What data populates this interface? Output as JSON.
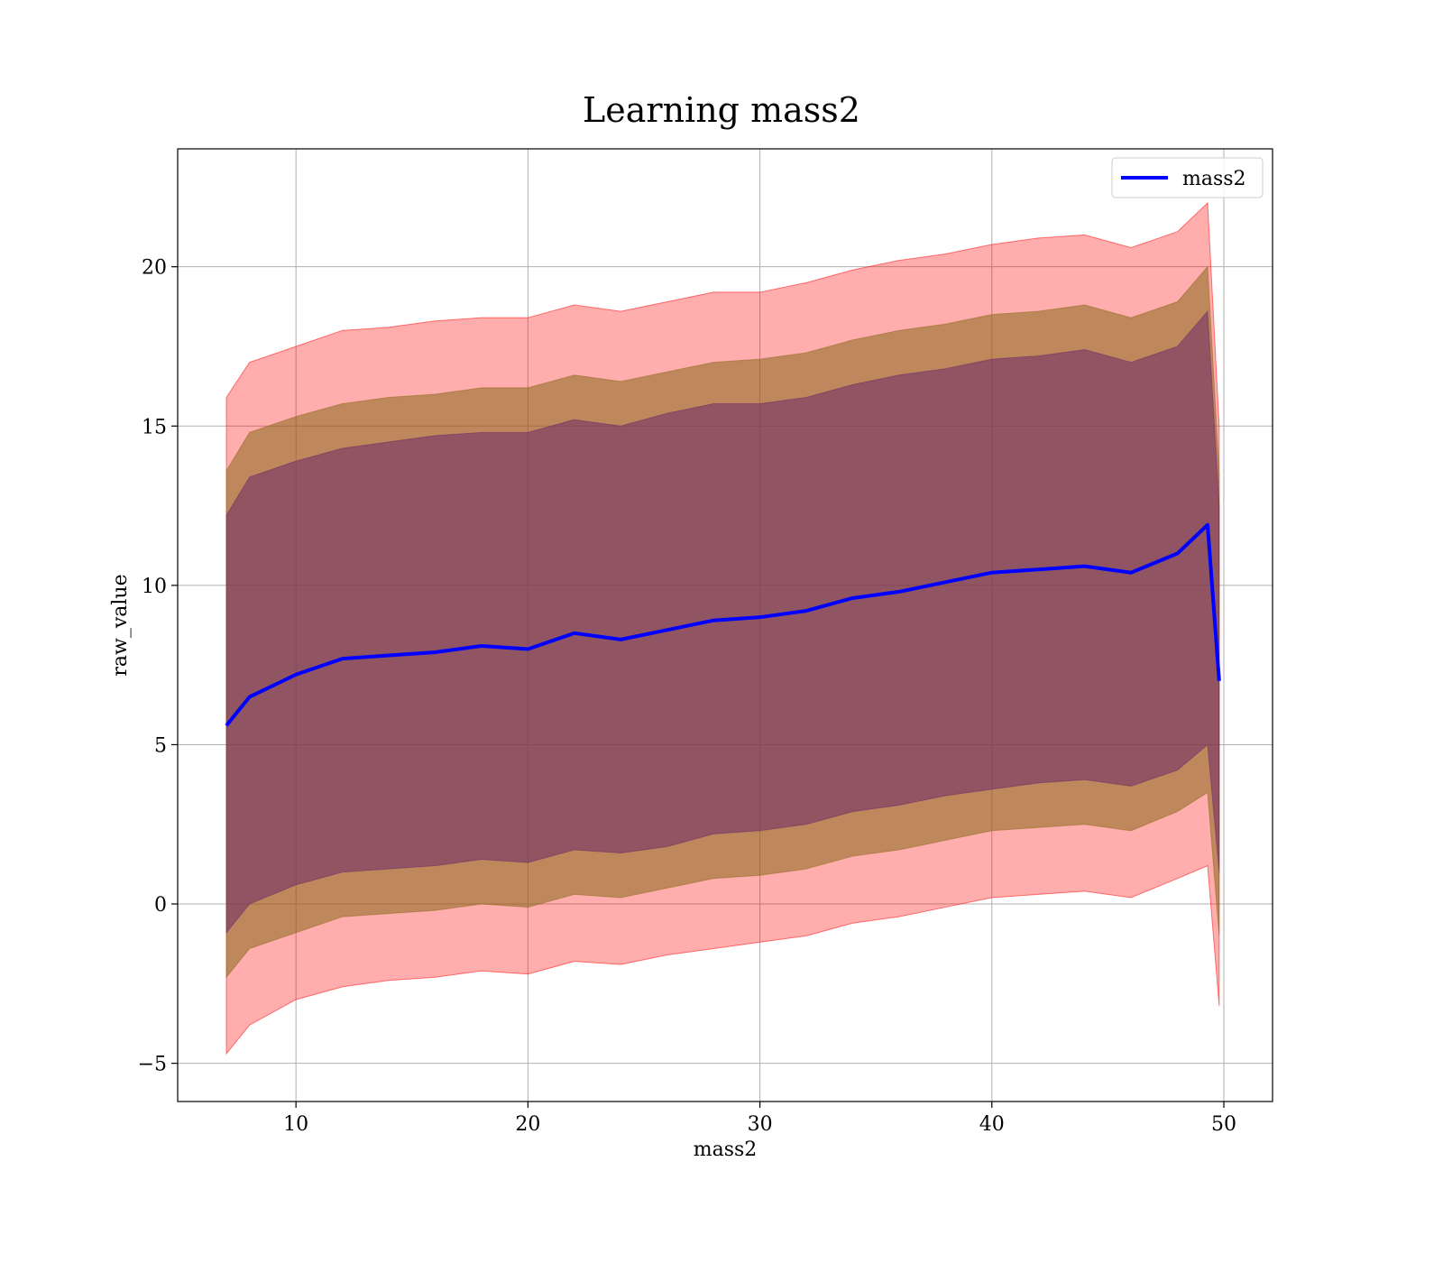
{
  "chart_data": {
    "type": "area",
    "title": "Learning mass2",
    "xlabel": "mass2",
    "ylabel": "raw_value",
    "xlim": [
      4.9,
      52.1
    ],
    "ylim": [
      -6.2,
      23.7
    ],
    "xticks": [
      10,
      20,
      30,
      40,
      50
    ],
    "yticks": [
      -5,
      0,
      5,
      10,
      15,
      20
    ],
    "ytick_labels": [
      "−5",
      "0",
      "5",
      "10",
      "15",
      "20"
    ],
    "grid": true,
    "legend": {
      "position": "top-right",
      "entries": [
        "mass2"
      ]
    },
    "colors": {
      "line": "#0000ff",
      "band_outer": "#ff0000",
      "band_middle": "#8b6a1a",
      "band_inner": "#6a2a6a"
    },
    "x": [
      7.0,
      8.0,
      10.0,
      12.0,
      14.0,
      16.0,
      18.0,
      20.0,
      22.0,
      24.0,
      26.0,
      28.0,
      30.0,
      32.0,
      34.0,
      36.0,
      38.0,
      40.0,
      42.0,
      44.0,
      46.0,
      48.0,
      49.3,
      49.8
    ],
    "series": [
      {
        "name": "mass2",
        "role": "mean",
        "values": [
          5.6,
          6.5,
          7.2,
          7.7,
          7.8,
          7.9,
          8.1,
          8.0,
          8.5,
          8.3,
          8.6,
          8.9,
          9.0,
          9.2,
          9.6,
          9.8,
          10.1,
          10.4,
          10.5,
          10.6,
          10.4,
          11.0,
          11.9,
          7.0
        ]
      },
      {
        "role": "outer_upper",
        "values": [
          15.9,
          17.0,
          17.5,
          18.0,
          18.1,
          18.3,
          18.4,
          18.4,
          18.8,
          18.6,
          18.9,
          19.2,
          19.2,
          19.5,
          19.9,
          20.2,
          20.4,
          20.7,
          20.9,
          21.0,
          20.6,
          21.1,
          22.0,
          15.0
        ]
      },
      {
        "role": "middle_upper",
        "values": [
          13.6,
          14.8,
          15.3,
          15.7,
          15.9,
          16.0,
          16.2,
          16.2,
          16.6,
          16.4,
          16.7,
          17.0,
          17.1,
          17.3,
          17.7,
          18.0,
          18.2,
          18.5,
          18.6,
          18.8,
          18.4,
          18.9,
          20.0,
          13.5
        ]
      },
      {
        "role": "inner_upper",
        "values": [
          12.2,
          13.4,
          13.9,
          14.3,
          14.5,
          14.7,
          14.8,
          14.8,
          15.2,
          15.0,
          15.4,
          15.7,
          15.7,
          15.9,
          16.3,
          16.6,
          16.8,
          17.1,
          17.2,
          17.4,
          17.0,
          17.5,
          18.6,
          12.5
        ]
      },
      {
        "role": "inner_lower",
        "values": [
          -0.9,
          0.0,
          0.6,
          1.0,
          1.1,
          1.2,
          1.4,
          1.3,
          1.7,
          1.6,
          1.8,
          2.2,
          2.3,
          2.5,
          2.9,
          3.1,
          3.4,
          3.6,
          3.8,
          3.9,
          3.7,
          4.2,
          5.0,
          1.0
        ]
      },
      {
        "role": "middle_lower",
        "values": [
          -2.3,
          -1.4,
          -0.9,
          -0.4,
          -0.3,
          -0.2,
          0.0,
          -0.1,
          0.3,
          0.2,
          0.5,
          0.8,
          0.9,
          1.1,
          1.5,
          1.7,
          2.0,
          2.3,
          2.4,
          2.5,
          2.3,
          2.9,
          3.5,
          -1.0
        ]
      },
      {
        "role": "outer_lower",
        "values": [
          -4.7,
          -3.8,
          -3.0,
          -2.6,
          -2.4,
          -2.3,
          -2.1,
          -2.2,
          -1.8,
          -1.9,
          -1.6,
          -1.4,
          -1.2,
          -1.0,
          -0.6,
          -0.4,
          -0.1,
          0.2,
          0.3,
          0.4,
          0.2,
          0.8,
          1.2,
          -3.2
        ]
      }
    ]
  }
}
